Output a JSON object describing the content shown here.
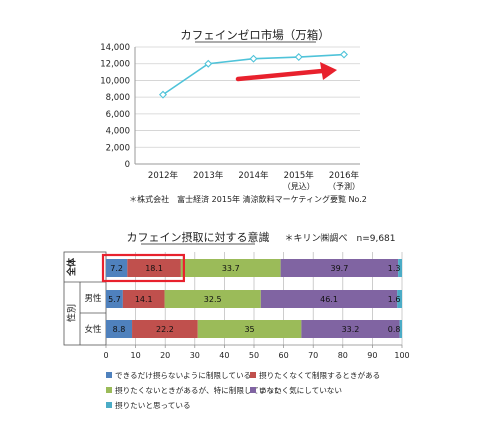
{
  "chart_data": [
    {
      "type": "line",
      "title": "カフェインゼロ市場（万箱）",
      "x": [
        "2012年",
        "2013年",
        "2014年",
        "2015年",
        "2016年"
      ],
      "x_sub": [
        "",
        "",
        "",
        "（見込）",
        "（予測）"
      ],
      "series": [
        {
          "values": [
            8300,
            12000,
            12600,
            12800,
            13100
          ]
        }
      ],
      "yticks": [
        "0",
        "2,000",
        "4,000",
        "6,000",
        "8,000",
        "10,000",
        "12,000",
        "14,000"
      ],
      "ylim": [
        0,
        14000
      ],
      "source": "＊株式会社　富士経済 2015年 清涼飲料マーケティング要覧 No.2",
      "grid": true,
      "line_color": "#4fc3d9",
      "arrow_color": "#e8212d"
    },
    {
      "type": "bar",
      "orientation": "horizontal",
      "stacked": true,
      "title": "カフェイン摂取に対する意識",
      "note": "＊キリン㈱調べ　n=9,681",
      "group_labels": [
        "全体",
        "性別"
      ],
      "categories": [
        "",
        "男性",
        "女性"
      ],
      "series": [
        {
          "name": "できるだけ摂らないように制限している",
          "values": [
            7.2,
            5.7,
            8.8
          ],
          "color": "#4f81bd"
        },
        {
          "name": "摂りたくなくて制限するときがある",
          "values": [
            18.1,
            14.1,
            22.2
          ],
          "color": "#c0504d"
        },
        {
          "name": "摂りたくないときがあるが、特に制限していない",
          "values": [
            33.7,
            32.5,
            35
          ],
          "color": "#9bbb59"
        },
        {
          "name": "まったく気にしていない",
          "values": [
            39.7,
            46.1,
            33.2
          ],
          "color": "#8064a2"
        },
        {
          "name": "摂りたいと思っている",
          "values": [
            1.3,
            1.6,
            0.8
          ],
          "color": "#4bacc6"
        }
      ],
      "xticks": [
        "0",
        "10",
        "20",
        "30",
        "40",
        "50",
        "60",
        "70",
        "80",
        "90",
        "100"
      ],
      "xlim": [
        0,
        100
      ],
      "highlight_color": "#e8212d"
    }
  ]
}
